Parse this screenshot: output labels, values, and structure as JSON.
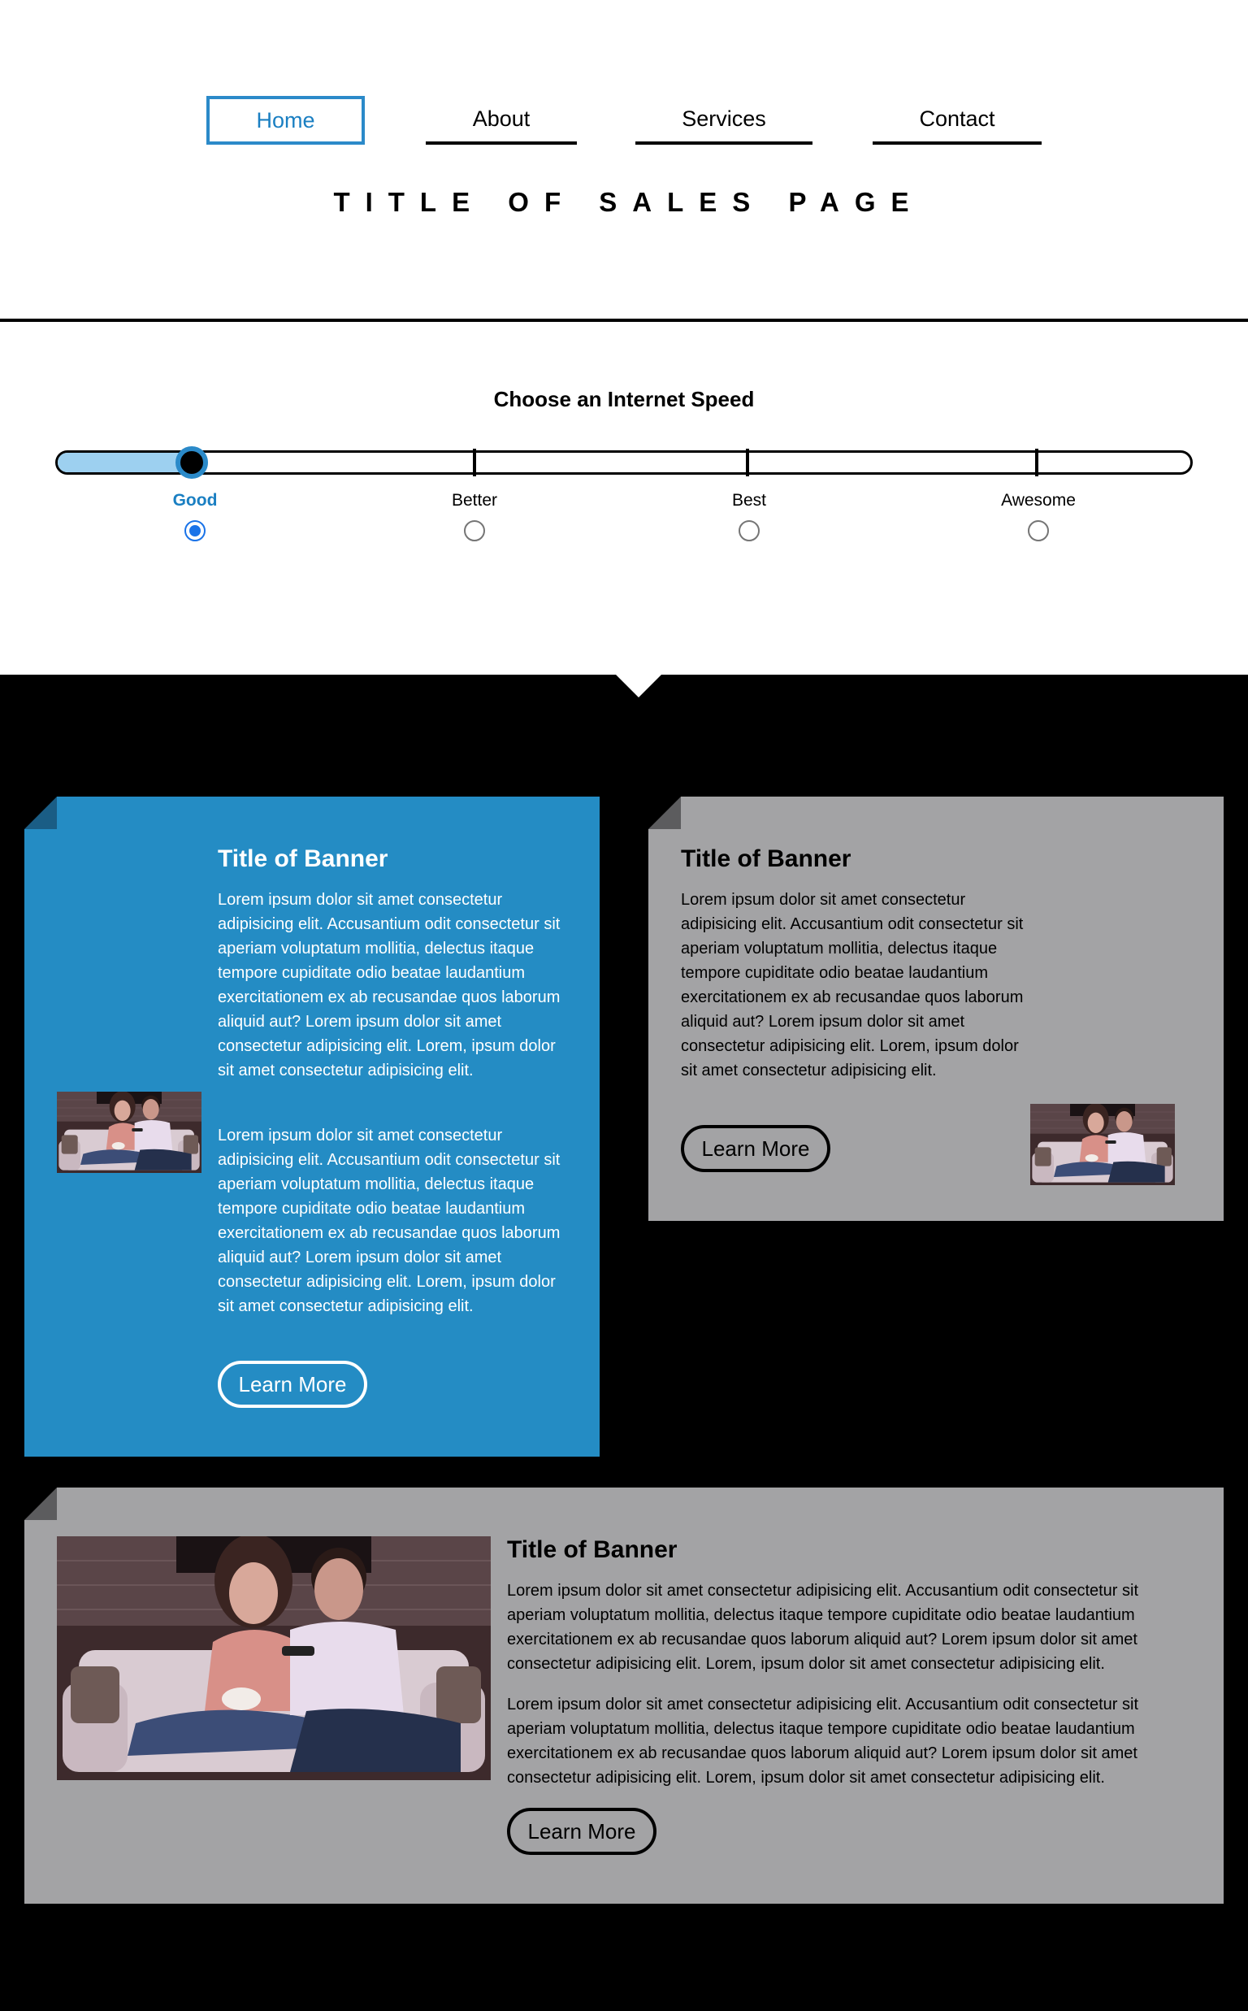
{
  "nav": {
    "items": [
      {
        "label": "Home",
        "active": true
      },
      {
        "label": "About",
        "active": false
      },
      {
        "label": "Services",
        "active": false
      },
      {
        "label": "Contact",
        "active": false
      }
    ]
  },
  "page_title": "TITLE OF SALES PAGE",
  "speed": {
    "heading": "Choose an Internet Speed",
    "options": [
      "Good",
      "Better",
      "Best",
      "Awesome"
    ],
    "selected": "Good",
    "slider_value_fraction": 0.12
  },
  "banners": [
    {
      "title": "Title of Banner",
      "paragraphs": [
        "Lorem ipsum dolor sit amet consectetur adipisicing elit. Accusantium odit consectetur sit aperiam voluptatum mollitia, delectus itaque tempore cupiditate odio beatae laudantium exercitationem ex ab recusandae quos laborum aliquid aut? Lorem ipsum dolor sit amet consectetur adipisicing elit. Lorem, ipsum dolor sit amet consectetur adipisicing elit.",
        "Lorem ipsum dolor sit amet consectetur adipisicing elit. Accusantium odit consectetur sit aperiam voluptatum mollitia, delectus itaque tempore cupiditate odio beatae laudantium exercitationem ex ab recusandae quos laborum aliquid aut? Lorem ipsum dolor sit amet consectetur adipisicing elit. Lorem, ipsum dolor sit amet consectetur adipisicing elit."
      ],
      "button": "Learn More",
      "color": "#248cc4"
    },
    {
      "title": "Title of Banner",
      "paragraphs": [
        "Lorem ipsum dolor sit amet consectetur adipisicing elit. Accusantium odit consectetur sit aperiam voluptatum mollitia, delectus itaque tempore cupiditate odio beatae laudantium exercitationem ex ab recusandae quos laborum aliquid aut? Lorem ipsum dolor sit amet consectetur adipisicing elit. Lorem, ipsum dolor sit amet consectetur adipisicing elit."
      ],
      "button": "Learn More",
      "color": "#a3a3a5"
    },
    {
      "title": "Title of Banner",
      "paragraphs": [
        "Lorem ipsum dolor sit amet consectetur adipisicing elit. Accusantium odit consectetur sit aperiam voluptatum mollitia, delectus itaque tempore cupiditate odio beatae laudantium exercitationem ex ab recusandae quos laborum aliquid aut? Lorem ipsum dolor sit amet consectetur adipisicing elit. Lorem, ipsum dolor sit amet consectetur adipisicing elit.",
        "Lorem ipsum dolor sit amet consectetur adipisicing elit. Accusantium odit consectetur sit aperiam voluptatum mollitia, delectus itaque tempore cupiditate odio beatae laudantium exercitationem ex ab recusandae quos laborum aliquid aut? Lorem ipsum dolor sit amet consectetur adipisicing elit. Lorem, ipsum dolor sit amet consectetur adipisicing elit."
      ],
      "button": "Learn More",
      "color": "#a3a3a5"
    }
  ],
  "colors": {
    "accent": "#2b8ac9",
    "page_background": "#000000",
    "slider_fill": "#9dd0f0"
  },
  "icons": [
    "couple-on-sofa-photo"
  ]
}
